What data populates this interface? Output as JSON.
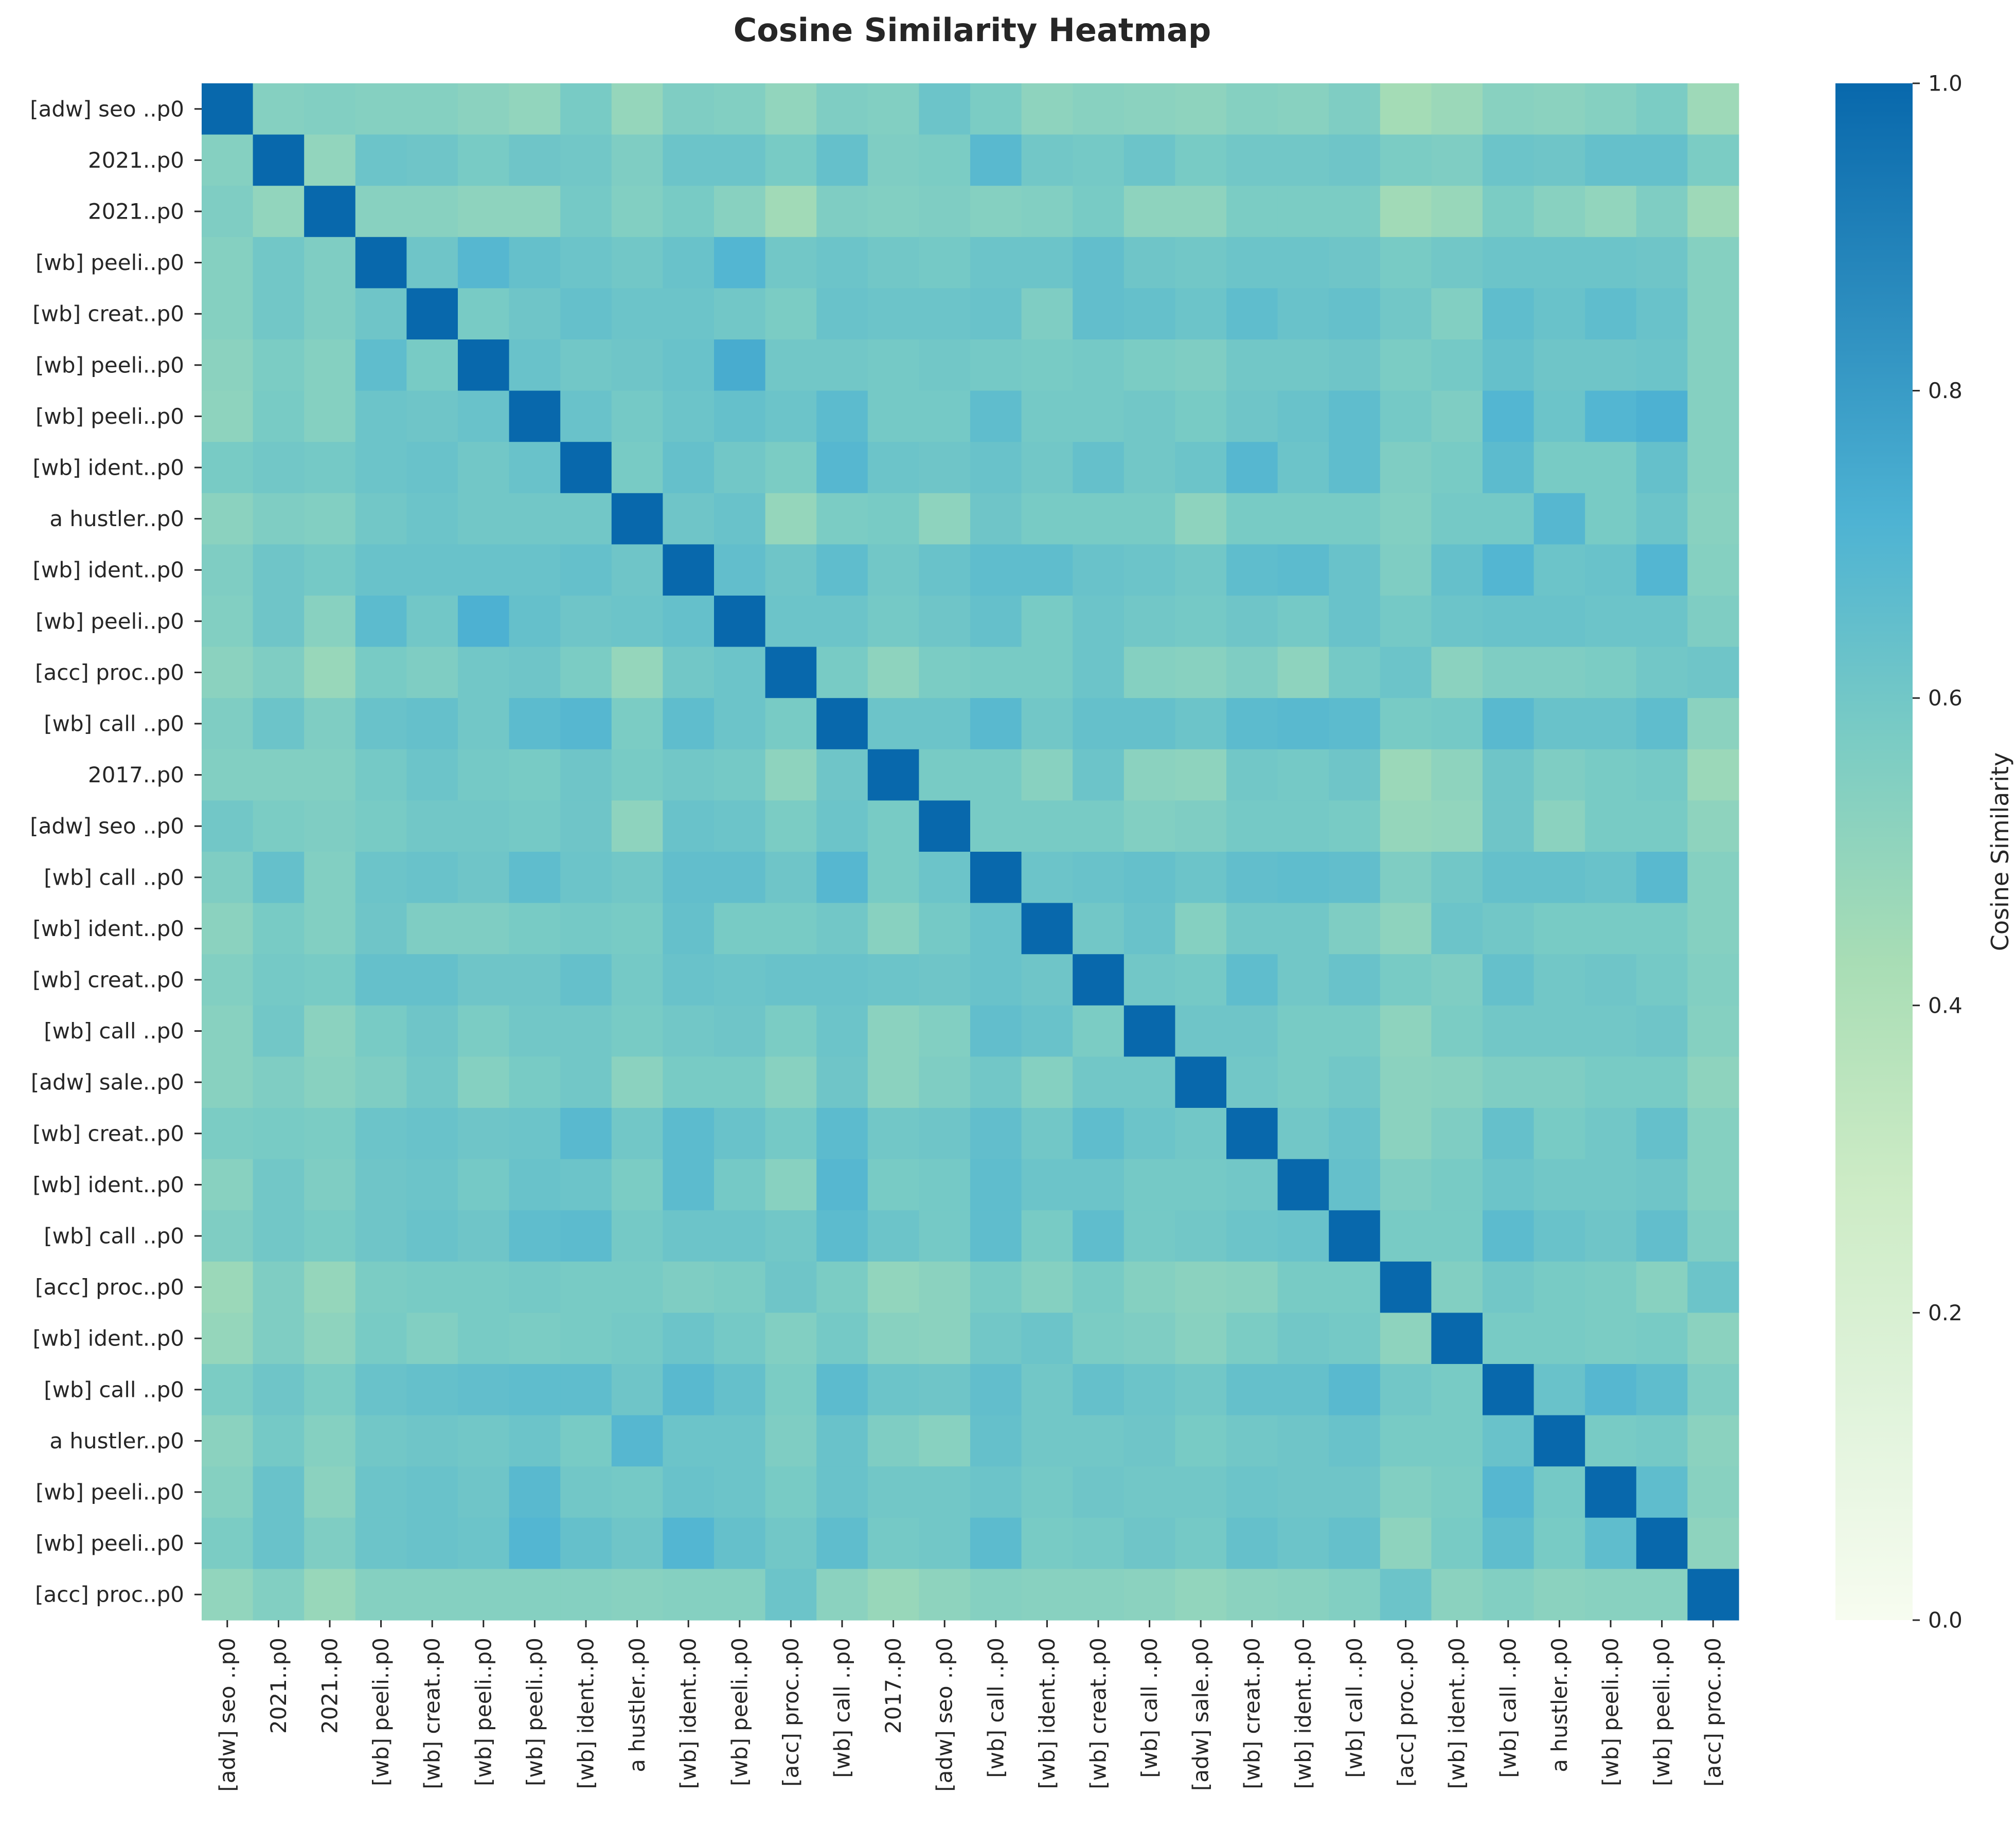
{
  "chart_data": {
    "type": "heatmap",
    "title": "Cosine Similarity Heatmap",
    "colorbar": {
      "label": "Cosine Similarity",
      "range": [
        0.0,
        1.0
      ],
      "ticks": [
        "0.0",
        "0.2",
        "0.4",
        "0.6",
        "0.8",
        "1.0"
      ],
      "colors": [
        "#f7fcf0",
        "#e0f3db",
        "#ccebc5",
        "#a8ddb5",
        "#7bccc4",
        "#4eb3d3",
        "#2b8cbe",
        "#0868ac"
      ]
    },
    "grid": false,
    "row_labels": [
      "[adw] seo ..p0",
      "2021..p0",
      "2021..p0",
      "[wb] peeli..p0",
      "[wb] creat..p0",
      "[wb] peeli..p0",
      "[wb] peeli..p0",
      "[wb] ident..p0",
      "a hustler..p0",
      "[wb] ident..p0",
      "[wb] peeli..p0",
      "[acc] proc..p0",
      "[wb] call ..p0",
      "2017..p0",
      "[adw] seo ..p0",
      "[wb] call ..p0",
      "[wb] ident..p0",
      "[wb] creat..p0",
      "[wb] call ..p0",
      "[adw] sale..p0",
      "[wb] creat..p0",
      "[wb] ident..p0",
      "[wb] call ..p0",
      "[acc] proc..p0",
      "[wb] ident..p0",
      "[wb] call ..p0",
      "a hustler..p0",
      "[wb] peeli..p0",
      "[wb] peeli..p0",
      "[acc] proc..p0"
    ],
    "col_labels": [
      "[adw] seo ..p0",
      "2021..p0",
      "2021..p0",
      "[wb] peeli..p0",
      "[wb] creat..p0",
      "[wb] peeli..p0",
      "[wb] peeli..p0",
      "[wb] ident..p0",
      "a hustler..p0",
      "[wb] ident..p0",
      "[wb] peeli..p0",
      "[acc] proc..p0",
      "[wb] call ..p0",
      "2017..p0",
      "[adw] seo ..p0",
      "[wb] call ..p0",
      "[wb] ident..p0",
      "[wb] creat..p0",
      "[wb] call ..p0",
      "[adw] sale..p0",
      "[wb] creat..p0",
      "[wb] ident..p0",
      "[wb] call ..p0",
      "[acc] proc..p0",
      "[wb] ident..p0",
      "[wb] call ..p0",
      "a hustler..p0",
      "[wb] peeli..p0",
      "[wb] peeli..p0",
      "[acc] proc..p0"
    ],
    "values": [
      [
        1.0,
        0.54,
        0.55,
        0.54,
        0.54,
        0.52,
        0.5,
        0.58,
        0.49,
        0.56,
        0.55,
        0.5,
        0.56,
        0.55,
        0.62,
        0.57,
        0.51,
        0.53,
        0.52,
        0.51,
        0.54,
        0.53,
        0.56,
        0.44,
        0.47,
        0.53,
        0.52,
        0.54,
        0.57,
        0.46
      ],
      [
        0.54,
        1.0,
        0.5,
        0.62,
        0.61,
        0.58,
        0.61,
        0.6,
        0.56,
        0.62,
        0.62,
        0.58,
        0.64,
        0.56,
        0.57,
        0.68,
        0.6,
        0.59,
        0.62,
        0.58,
        0.6,
        0.6,
        0.61,
        0.57,
        0.56,
        0.62,
        0.61,
        0.64,
        0.64,
        0.57
      ],
      [
        0.56,
        0.5,
        1.0,
        0.53,
        0.53,
        0.51,
        0.51,
        0.59,
        0.55,
        0.58,
        0.53,
        0.45,
        0.56,
        0.55,
        0.56,
        0.54,
        0.55,
        0.58,
        0.51,
        0.51,
        0.57,
        0.57,
        0.57,
        0.45,
        0.48,
        0.57,
        0.53,
        0.5,
        0.56,
        0.46
      ],
      [
        0.54,
        0.6,
        0.56,
        1.0,
        0.61,
        0.69,
        0.64,
        0.62,
        0.6,
        0.63,
        0.7,
        0.6,
        0.62,
        0.6,
        0.59,
        0.62,
        0.62,
        0.65,
        0.61,
        0.6,
        0.62,
        0.62,
        0.61,
        0.58,
        0.6,
        0.62,
        0.62,
        0.62,
        0.61,
        0.54
      ],
      [
        0.54,
        0.6,
        0.56,
        0.61,
        1.0,
        0.58,
        0.61,
        0.64,
        0.62,
        0.62,
        0.6,
        0.57,
        0.63,
        0.62,
        0.62,
        0.63,
        0.56,
        0.65,
        0.64,
        0.62,
        0.66,
        0.63,
        0.64,
        0.6,
        0.55,
        0.66,
        0.63,
        0.66,
        0.63,
        0.54
      ],
      [
        0.52,
        0.57,
        0.54,
        0.66,
        0.58,
        1.0,
        0.63,
        0.6,
        0.61,
        0.63,
        0.74,
        0.6,
        0.6,
        0.59,
        0.6,
        0.59,
        0.58,
        0.59,
        0.57,
        0.56,
        0.6,
        0.6,
        0.61,
        0.57,
        0.59,
        0.64,
        0.61,
        0.61,
        0.62,
        0.54
      ],
      [
        0.51,
        0.58,
        0.54,
        0.62,
        0.61,
        0.63,
        1.0,
        0.63,
        0.59,
        0.62,
        0.64,
        0.62,
        0.67,
        0.59,
        0.59,
        0.66,
        0.59,
        0.59,
        0.6,
        0.58,
        0.61,
        0.63,
        0.66,
        0.59,
        0.56,
        0.7,
        0.62,
        0.7,
        0.72,
        0.54
      ],
      [
        0.58,
        0.6,
        0.59,
        0.62,
        0.63,
        0.6,
        0.63,
        1.0,
        0.58,
        0.64,
        0.6,
        0.57,
        0.69,
        0.62,
        0.61,
        0.63,
        0.6,
        0.64,
        0.6,
        0.62,
        0.69,
        0.62,
        0.66,
        0.56,
        0.58,
        0.67,
        0.58,
        0.58,
        0.64,
        0.54
      ],
      [
        0.52,
        0.56,
        0.55,
        0.6,
        0.62,
        0.6,
        0.6,
        0.6,
        1.0,
        0.61,
        0.63,
        0.49,
        0.57,
        0.58,
        0.51,
        0.61,
        0.58,
        0.58,
        0.58,
        0.51,
        0.58,
        0.58,
        0.58,
        0.55,
        0.59,
        0.59,
        0.69,
        0.58,
        0.62,
        0.53
      ],
      [
        0.56,
        0.61,
        0.59,
        0.63,
        0.63,
        0.63,
        0.63,
        0.64,
        0.61,
        1.0,
        0.65,
        0.61,
        0.66,
        0.6,
        0.63,
        0.66,
        0.66,
        0.63,
        0.62,
        0.6,
        0.66,
        0.67,
        0.63,
        0.56,
        0.64,
        0.7,
        0.62,
        0.63,
        0.7,
        0.54
      ],
      [
        0.55,
        0.61,
        0.53,
        0.67,
        0.6,
        0.72,
        0.64,
        0.61,
        0.62,
        0.64,
        1.0,
        0.62,
        0.62,
        0.59,
        0.61,
        0.64,
        0.58,
        0.62,
        0.6,
        0.59,
        0.61,
        0.59,
        0.63,
        0.59,
        0.62,
        0.63,
        0.63,
        0.62,
        0.62,
        0.56
      ],
      [
        0.52,
        0.56,
        0.48,
        0.58,
        0.56,
        0.6,
        0.61,
        0.57,
        0.49,
        0.6,
        0.62,
        1.0,
        0.58,
        0.51,
        0.57,
        0.58,
        0.58,
        0.62,
        0.54,
        0.53,
        0.56,
        0.51,
        0.59,
        0.62,
        0.52,
        0.56,
        0.56,
        0.57,
        0.6,
        0.61
      ],
      [
        0.56,
        0.62,
        0.56,
        0.63,
        0.64,
        0.6,
        0.67,
        0.69,
        0.57,
        0.66,
        0.62,
        0.58,
        1.0,
        0.62,
        0.62,
        0.68,
        0.6,
        0.64,
        0.64,
        0.62,
        0.67,
        0.68,
        0.67,
        0.58,
        0.59,
        0.68,
        0.63,
        0.63,
        0.66,
        0.52
      ],
      [
        0.55,
        0.55,
        0.55,
        0.59,
        0.62,
        0.59,
        0.58,
        0.61,
        0.58,
        0.6,
        0.59,
        0.51,
        0.61,
        1.0,
        0.58,
        0.58,
        0.53,
        0.62,
        0.52,
        0.51,
        0.6,
        0.59,
        0.61,
        0.47,
        0.51,
        0.61,
        0.56,
        0.58,
        0.59,
        0.47
      ],
      [
        0.6,
        0.57,
        0.56,
        0.58,
        0.6,
        0.6,
        0.59,
        0.61,
        0.51,
        0.63,
        0.62,
        0.57,
        0.62,
        0.58,
        1.0,
        0.58,
        0.58,
        0.58,
        0.55,
        0.56,
        0.59,
        0.59,
        0.58,
        0.49,
        0.5,
        0.61,
        0.52,
        0.58,
        0.58,
        0.51
      ],
      [
        0.56,
        0.64,
        0.55,
        0.62,
        0.63,
        0.61,
        0.66,
        0.62,
        0.6,
        0.65,
        0.65,
        0.61,
        0.69,
        0.58,
        0.62,
        1.0,
        0.62,
        0.63,
        0.64,
        0.62,
        0.65,
        0.66,
        0.65,
        0.56,
        0.6,
        0.64,
        0.64,
        0.63,
        0.68,
        0.54
      ],
      [
        0.52,
        0.58,
        0.55,
        0.61,
        0.56,
        0.56,
        0.58,
        0.59,
        0.58,
        0.64,
        0.58,
        0.58,
        0.6,
        0.53,
        0.59,
        0.63,
        1.0,
        0.6,
        0.63,
        0.54,
        0.6,
        0.6,
        0.56,
        0.51,
        0.62,
        0.6,
        0.58,
        0.58,
        0.58,
        0.54
      ],
      [
        0.55,
        0.59,
        0.58,
        0.64,
        0.64,
        0.61,
        0.61,
        0.64,
        0.59,
        0.63,
        0.62,
        0.63,
        0.63,
        0.62,
        0.61,
        0.63,
        0.61,
        1.0,
        0.6,
        0.59,
        0.66,
        0.6,
        0.63,
        0.58,
        0.56,
        0.64,
        0.6,
        0.61,
        0.59,
        0.55
      ],
      [
        0.53,
        0.6,
        0.52,
        0.58,
        0.61,
        0.57,
        0.6,
        0.6,
        0.58,
        0.6,
        0.61,
        0.57,
        0.62,
        0.52,
        0.55,
        0.65,
        0.63,
        0.57,
        1.0,
        0.61,
        0.61,
        0.58,
        0.58,
        0.51,
        0.57,
        0.6,
        0.6,
        0.6,
        0.61,
        0.54
      ],
      [
        0.53,
        0.56,
        0.53,
        0.56,
        0.6,
        0.54,
        0.58,
        0.6,
        0.52,
        0.58,
        0.58,
        0.53,
        0.61,
        0.52,
        0.56,
        0.6,
        0.54,
        0.6,
        0.6,
        1.0,
        0.6,
        0.58,
        0.6,
        0.52,
        0.53,
        0.56,
        0.56,
        0.58,
        0.58,
        0.51
      ],
      [
        0.57,
        0.58,
        0.57,
        0.62,
        0.63,
        0.61,
        0.62,
        0.68,
        0.6,
        0.67,
        0.63,
        0.59,
        0.67,
        0.6,
        0.61,
        0.65,
        0.6,
        0.66,
        0.62,
        0.6,
        1.0,
        0.6,
        0.63,
        0.52,
        0.56,
        0.64,
        0.58,
        0.6,
        0.64,
        0.54
      ],
      [
        0.53,
        0.6,
        0.56,
        0.61,
        0.62,
        0.59,
        0.63,
        0.62,
        0.57,
        0.67,
        0.59,
        0.53,
        0.69,
        0.58,
        0.59,
        0.66,
        0.62,
        0.62,
        0.59,
        0.59,
        0.6,
        1.0,
        0.64,
        0.56,
        0.58,
        0.62,
        0.6,
        0.6,
        0.61,
        0.54
      ],
      [
        0.56,
        0.6,
        0.58,
        0.61,
        0.63,
        0.61,
        0.66,
        0.67,
        0.59,
        0.62,
        0.62,
        0.6,
        0.67,
        0.62,
        0.59,
        0.66,
        0.58,
        0.66,
        0.59,
        0.6,
        0.62,
        0.63,
        1.0,
        0.58,
        0.58,
        0.67,
        0.63,
        0.61,
        0.65,
        0.56
      ],
      [
        0.47,
        0.56,
        0.49,
        0.57,
        0.58,
        0.58,
        0.59,
        0.58,
        0.58,
        0.56,
        0.57,
        0.61,
        0.57,
        0.5,
        0.52,
        0.58,
        0.54,
        0.58,
        0.54,
        0.52,
        0.53,
        0.58,
        0.58,
        1.0,
        0.55,
        0.6,
        0.58,
        0.57,
        0.53,
        0.62
      ],
      [
        0.49,
        0.56,
        0.51,
        0.58,
        0.55,
        0.58,
        0.57,
        0.58,
        0.59,
        0.62,
        0.59,
        0.55,
        0.59,
        0.53,
        0.52,
        0.6,
        0.62,
        0.57,
        0.56,
        0.53,
        0.57,
        0.6,
        0.59,
        0.51,
        1.0,
        0.58,
        0.58,
        0.57,
        0.58,
        0.52
      ],
      [
        0.57,
        0.61,
        0.57,
        0.63,
        0.64,
        0.65,
        0.66,
        0.66,
        0.61,
        0.68,
        0.64,
        0.57,
        0.67,
        0.62,
        0.61,
        0.65,
        0.6,
        0.64,
        0.62,
        0.6,
        0.64,
        0.64,
        0.68,
        0.6,
        0.58,
        1.0,
        0.63,
        0.69,
        0.66,
        0.56
      ],
      [
        0.52,
        0.59,
        0.54,
        0.6,
        0.61,
        0.6,
        0.62,
        0.58,
        0.69,
        0.62,
        0.62,
        0.56,
        0.63,
        0.56,
        0.53,
        0.64,
        0.6,
        0.6,
        0.61,
        0.58,
        0.6,
        0.61,
        0.63,
        0.58,
        0.58,
        0.63,
        1.0,
        0.58,
        0.59,
        0.52
      ],
      [
        0.54,
        0.63,
        0.52,
        0.62,
        0.63,
        0.61,
        0.68,
        0.6,
        0.59,
        0.63,
        0.62,
        0.58,
        0.63,
        0.6,
        0.6,
        0.62,
        0.59,
        0.61,
        0.6,
        0.6,
        0.62,
        0.61,
        0.61,
        0.55,
        0.57,
        0.69,
        0.59,
        1.0,
        0.66,
        0.53
      ],
      [
        0.57,
        0.63,
        0.56,
        0.62,
        0.63,
        0.62,
        0.7,
        0.64,
        0.61,
        0.7,
        0.64,
        0.6,
        0.66,
        0.59,
        0.6,
        0.67,
        0.58,
        0.59,
        0.61,
        0.59,
        0.64,
        0.62,
        0.64,
        0.51,
        0.58,
        0.66,
        0.58,
        0.66,
        1.0,
        0.51
      ],
      [
        0.5,
        0.55,
        0.48,
        0.54,
        0.54,
        0.54,
        0.54,
        0.54,
        0.53,
        0.54,
        0.54,
        0.62,
        0.52,
        0.48,
        0.51,
        0.54,
        0.53,
        0.53,
        0.52,
        0.5,
        0.52,
        0.53,
        0.55,
        0.62,
        0.52,
        0.55,
        0.52,
        0.53,
        0.53,
        1.0
      ]
    ]
  }
}
